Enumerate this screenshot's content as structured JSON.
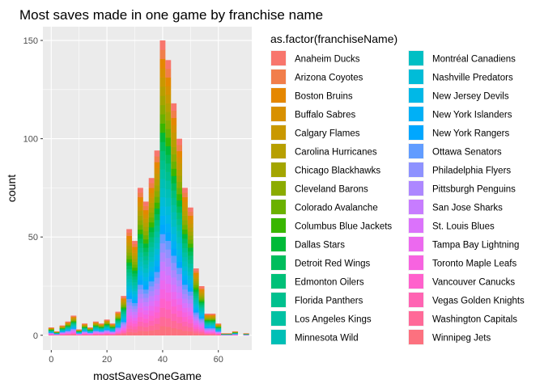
{
  "chart_data": {
    "type": "bar",
    "subtype": "stacked-histogram",
    "title": "Most saves made in one game by franchise name",
    "xlabel": "mostSavesOneGame",
    "ylabel": "count",
    "x_ticks": [
      0,
      20,
      40,
      60
    ],
    "y_ticks": [
      0,
      50,
      100,
      150
    ],
    "xlim": [
      -3,
      72
    ],
    "ylim": [
      -7.5,
      157
    ],
    "bin_width": 2,
    "grid": true,
    "background": "#ebebeb",
    "legend": {
      "title": "as.factor(franchiseName)",
      "position": "right",
      "columns": 2
    },
    "series": [
      {
        "name": "Anaheim Ducks",
        "color": "#f8766d"
      },
      {
        "name": "Arizona Coyotes",
        "color": "#f17e4b"
      },
      {
        "name": "Boston Bruins",
        "color": "#e58700"
      },
      {
        "name": "Buffalo Sabres",
        "color": "#d89000"
      },
      {
        "name": "Calgary Flames",
        "color": "#c99800"
      },
      {
        "name": "Carolina Hurricanes",
        "color": "#b79f00"
      },
      {
        "name": "Chicago Blackhawks",
        "color": "#a3a500"
      },
      {
        "name": "Cleveland Barons",
        "color": "#8bab00"
      },
      {
        "name": "Colorado Avalanche",
        "color": "#6bb100"
      },
      {
        "name": "Columbus Blue Jackets",
        "color": "#39b600"
      },
      {
        "name": "Dallas Stars",
        "color": "#00ba38"
      },
      {
        "name": "Detroit Red Wings",
        "color": "#00bd5c"
      },
      {
        "name": "Edmonton Oilers",
        "color": "#00c078"
      },
      {
        "name": "Florida Panthers",
        "color": "#00c08e"
      },
      {
        "name": "Los Angeles Kings",
        "color": "#00c1a3"
      },
      {
        "name": "Minnesota Wild",
        "color": "#00bfb6"
      },
      {
        "name": "Montréal Canadiens",
        "color": "#00bfc4"
      },
      {
        "name": "Nashville Predators",
        "color": "#00bcd8"
      },
      {
        "name": "New Jersey Devils",
        "color": "#00b8e7"
      },
      {
        "name": "New York Islanders",
        "color": "#00b0f6"
      },
      {
        "name": "New York Rangers",
        "color": "#00a7ff"
      },
      {
        "name": "Ottawa Senators",
        "color": "#619cff"
      },
      {
        "name": "Philadelphia Flyers",
        "color": "#8e92ff"
      },
      {
        "name": "Pittsburgh Penguins",
        "color": "#ad87ff"
      },
      {
        "name": "San Jose Sharks",
        "color": "#c77cff"
      },
      {
        "name": "St. Louis Blues",
        "color": "#db72fb"
      },
      {
        "name": "Tampa Bay Lightning",
        "color": "#ec69ef"
      },
      {
        "name": "Toronto Maple Leafs",
        "color": "#f763e0"
      },
      {
        "name": "Vancouver Canucks",
        "color": "#ff61cc"
      },
      {
        "name": "Vegas Golden Knights",
        "color": "#ff64b3"
      },
      {
        "name": "Washington Capitals",
        "color": "#ff6a98"
      },
      {
        "name": "Winnipeg Jets",
        "color": "#fc717f"
      }
    ],
    "bins": [
      {
        "x": 0,
        "total": 4
      },
      {
        "x": 2,
        "total": 2
      },
      {
        "x": 4,
        "total": 5
      },
      {
        "x": 6,
        "total": 7
      },
      {
        "x": 8,
        "total": 10
      },
      {
        "x": 10,
        "total": 3
      },
      {
        "x": 12,
        "total": 6
      },
      {
        "x": 14,
        "total": 4
      },
      {
        "x": 16,
        "total": 7
      },
      {
        "x": 18,
        "total": 6
      },
      {
        "x": 20,
        "total": 8
      },
      {
        "x": 22,
        "total": 6
      },
      {
        "x": 24,
        "total": 12
      },
      {
        "x": 26,
        "total": 20
      },
      {
        "x": 28,
        "total": 54
      },
      {
        "x": 30,
        "total": 48
      },
      {
        "x": 32,
        "total": 75
      },
      {
        "x": 34,
        "total": 68
      },
      {
        "x": 36,
        "total": 80
      },
      {
        "x": 38,
        "total": 94
      },
      {
        "x": 40,
        "total": 150
      },
      {
        "x": 42,
        "total": 140
      },
      {
        "x": 44,
        "total": 118
      },
      {
        "x": 46,
        "total": 100
      },
      {
        "x": 48,
        "total": 75
      },
      {
        "x": 50,
        "total": 65
      },
      {
        "x": 52,
        "total": 34
      },
      {
        "x": 54,
        "total": 25
      },
      {
        "x": 56,
        "total": 11
      },
      {
        "x": 58,
        "total": 11
      },
      {
        "x": 60,
        "total": 6
      },
      {
        "x": 62,
        "total": 1
      },
      {
        "x": 64,
        "total": 1
      },
      {
        "x": 66,
        "total": 2
      },
      {
        "x": 70,
        "total": 1
      }
    ]
  }
}
